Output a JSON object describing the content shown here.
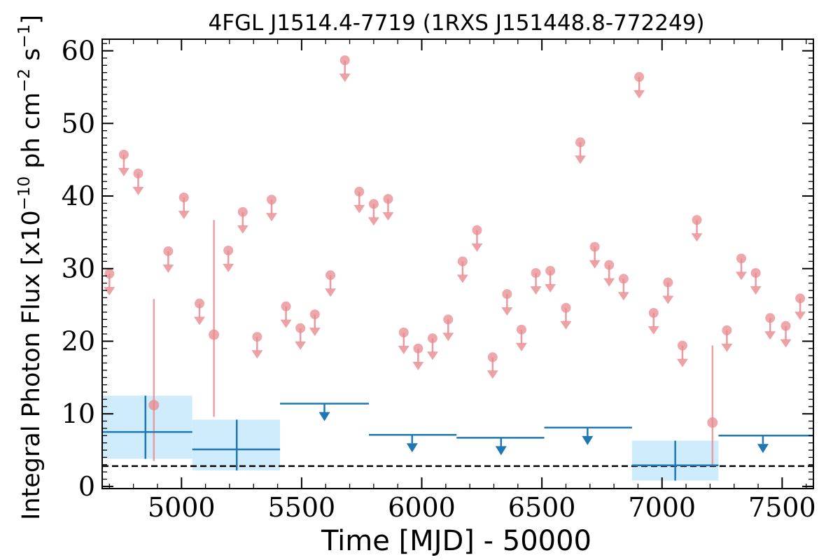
{
  "chart_data": {
    "type": "scatter",
    "title": "4FGL J1514.4-7719 (1RXS J151448.8-772249)",
    "xlabel": "Time [MJD] - 50000",
    "ylabel": "Integral Photon Flux [x10",
    "ylabel_exp1": "−10",
    "ylabel_mid": " ph cm",
    "ylabel_exp2": "−2",
    "ylabel_s": " s",
    "ylabel_exp3": "−1",
    "ylabel_end": "]",
    "xlim": [
      4670,
      7630
    ],
    "ylim": [
      -0.3,
      61.6
    ],
    "x_ticks": [
      5000,
      5500,
      6000,
      6500,
      7000,
      7500
    ],
    "x_tick_labels": [
      "5000",
      "5500",
      "6000",
      "6500",
      "7000",
      "7500"
    ],
    "y_ticks": [
      0,
      10,
      20,
      30,
      40,
      50,
      60
    ],
    "y_tick_labels": [
      "0",
      "10",
      "20",
      "30",
      "40",
      "50",
      "60"
    ],
    "colors": {
      "short_bin": "#e88a8e",
      "long_bin": "#1f77b4",
      "long_bin_band": "#bfe6fb",
      "reference_line": "#000000"
    },
    "reference_line": {
      "y": 2.8,
      "style": "dashed"
    },
    "short_bin_upper_limits": [
      [
        4700,
        29.3
      ],
      [
        4760,
        45.7
      ],
      [
        4820,
        43.1
      ],
      [
        4945,
        32.4
      ],
      [
        5010,
        39.8
      ],
      [
        5075,
        25.2
      ],
      [
        5195,
        32.5
      ],
      [
        5255,
        37.8
      ],
      [
        5315,
        20.6
      ],
      [
        5375,
        39.5
      ],
      [
        5435,
        24.8
      ],
      [
        5495,
        21.8
      ],
      [
        5555,
        23.7
      ],
      [
        5620,
        29.1
      ],
      [
        5680,
        58.7
      ],
      [
        5740,
        40.6
      ],
      [
        5800,
        38.9
      ],
      [
        5860,
        39.6
      ],
      [
        5925,
        21.2
      ],
      [
        5985,
        19.0
      ],
      [
        6045,
        20.4
      ],
      [
        6110,
        23.0
      ],
      [
        6170,
        31.0
      ],
      [
        6230,
        35.3
      ],
      [
        6295,
        17.8
      ],
      [
        6355,
        26.5
      ],
      [
        6415,
        21.6
      ],
      [
        6475,
        29.4
      ],
      [
        6535,
        29.7
      ],
      [
        6600,
        24.6
      ],
      [
        6660,
        47.4
      ],
      [
        6720,
        33.0
      ],
      [
        6780,
        30.5
      ],
      [
        6840,
        28.6
      ],
      [
        6905,
        56.4
      ],
      [
        6965,
        23.9
      ],
      [
        7025,
        28.1
      ],
      [
        7085,
        19.4
      ],
      [
        7145,
        36.7
      ],
      [
        7270,
        21.5
      ],
      [
        7330,
        31.4
      ],
      [
        7390,
        29.4
      ],
      [
        7450,
        23.2
      ],
      [
        7515,
        22.1
      ],
      [
        7575,
        25.9
      ]
    ],
    "short_bin_detections": [
      {
        "x": 4885,
        "y": 11.2,
        "y_err": [
          3.5,
          25.8
        ]
      },
      {
        "x": 5135,
        "y": 20.9,
        "y_err": [
          9.6,
          36.7
        ]
      },
      {
        "x": 7210,
        "y": 8.8,
        "y_err": [
          2.8,
          19.4
        ]
      }
    ],
    "long_bin_detections": [
      {
        "x_range": [
          4670,
          5045
        ],
        "x": 4850,
        "y": 7.5,
        "y_err": [
          3.8,
          12.5
        ]
      },
      {
        "x_range": [
          5045,
          5410
        ],
        "x": 5230,
        "y": 5.1,
        "y_err": [
          2.2,
          9.2
        ]
      },
      {
        "x_range": [
          6875,
          7235
        ],
        "x": 7055,
        "y": 2.9,
        "y_err": [
          0.8,
          6.3
        ]
      }
    ],
    "long_bin_upper_limits": [
      {
        "x_range": [
          5410,
          5780
        ],
        "x": 5595,
        "y": 11.4
      },
      {
        "x_range": [
          5780,
          6145
        ],
        "x": 5960,
        "y": 7.1
      },
      {
        "x_range": [
          6145,
          6510
        ],
        "x": 6330,
        "y": 6.7
      },
      {
        "x_range": [
          6510,
          6875
        ],
        "x": 6690,
        "y": 8.1
      },
      {
        "x_range": [
          7235,
          7630
        ],
        "x": 7420,
        "y": 7.0
      }
    ]
  }
}
